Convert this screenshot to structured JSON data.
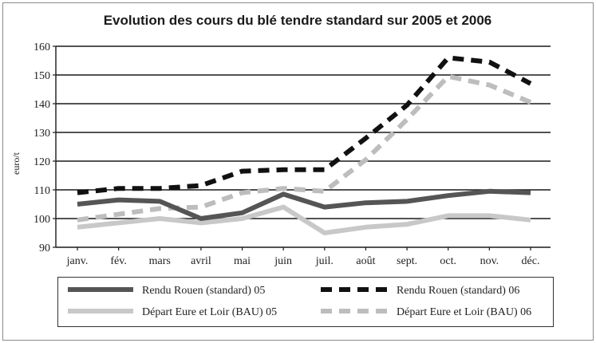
{
  "chart_data": {
    "type": "line",
    "title": "Evolution des cours du blé tendre standard sur 2005 et 2006",
    "xlabel": "",
    "ylabel": "euro/t",
    "categories": [
      "janv.",
      "fév.",
      "mars",
      "avril",
      "mai",
      "juin",
      "juil.",
      "août",
      "sept.",
      "oct.",
      "nov.",
      "déc."
    ],
    "ylim": [
      90,
      160
    ],
    "yticks": [
      90,
      100,
      110,
      120,
      130,
      140,
      150,
      160
    ],
    "grid": {
      "horizontal": true,
      "vertical": false
    },
    "legend": {
      "placement": "bottom"
    },
    "series": [
      {
        "name": "Rendu Rouen (standard) 05",
        "color": "#555555",
        "line_style": "solid",
        "values": [
          105,
          106.5,
          106,
          100,
          102,
          108.5,
          104,
          105.5,
          106,
          108,
          109.5,
          109
        ]
      },
      {
        "name": "Rendu Rouen (standard) 06",
        "color": "#111111",
        "line_style": "dashed",
        "values": [
          109,
          110.5,
          110.5,
          111.5,
          116.5,
          117,
          117,
          128,
          139.5,
          156,
          154.5,
          147
        ]
      },
      {
        "name": "Départ Eure et Loir (BAU) 05",
        "color": "#c8c8c8",
        "line_style": "solid",
        "values": [
          97,
          98.5,
          100,
          98.5,
          100,
          104,
          95,
          97,
          98,
          101,
          101,
          99.5
        ]
      },
      {
        "name": "Départ Eure et Loir (BAU) 06",
        "color": "#bdbdbd",
        "line_style": "dashed",
        "values": [
          99.5,
          101.5,
          103.5,
          104,
          109,
          110.5,
          109.5,
          120.5,
          134.5,
          149.5,
          146.5,
          140.5
        ]
      }
    ]
  }
}
